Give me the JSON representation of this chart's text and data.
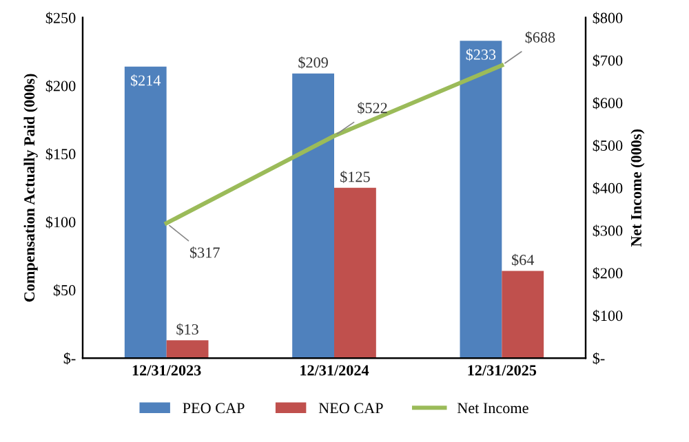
{
  "chart_data": {
    "type": "bar",
    "categories": [
      "12/31/2023",
      "12/31/2024",
      "12/31/2025"
    ],
    "ylabel": "Compensation Actually Paid (000s)",
    "y2label": "Net Income (000s)",
    "ylim": [
      0,
      250
    ],
    "yticks": [
      {
        "value": 0,
        "label": "$-"
      },
      {
        "value": 50,
        "label": "$50"
      },
      {
        "value": 100,
        "label": "$100"
      },
      {
        "value": 150,
        "label": "$150"
      },
      {
        "value": 200,
        "label": "$200"
      },
      {
        "value": 250,
        "label": "$250"
      }
    ],
    "y2lim": [
      0,
      800
    ],
    "y2ticks": [
      {
        "value": 0,
        "label": "$-"
      },
      {
        "value": 100,
        "label": "$100"
      },
      {
        "value": 200,
        "label": "$200"
      },
      {
        "value": 300,
        "label": "$300"
      },
      {
        "value": 400,
        "label": "$400"
      },
      {
        "value": 500,
        "label": "$500"
      },
      {
        "value": 600,
        "label": "$600"
      },
      {
        "value": 700,
        "label": "$700"
      },
      {
        "value": 800,
        "label": "$800"
      }
    ],
    "series": [
      {
        "name": "PEO CAP",
        "color": "#4f81bd",
        "values": [
          214,
          209,
          233
        ],
        "value_labels": [
          "$214",
          "$209",
          "$233"
        ]
      },
      {
        "name": "NEO CAP",
        "color": "#c0504d",
        "values": [
          13,
          125,
          64
        ],
        "value_labels": [
          "$13",
          "$125",
          "$64"
        ]
      },
      {
        "name": "Net Income",
        "type": "line",
        "axis": "y2",
        "color": "#9bbb59",
        "values": [
          317,
          522,
          688
        ],
        "value_labels": [
          "$317",
          "$522",
          "$688"
        ]
      }
    ],
    "legend": "bottom",
    "grid": false
  }
}
